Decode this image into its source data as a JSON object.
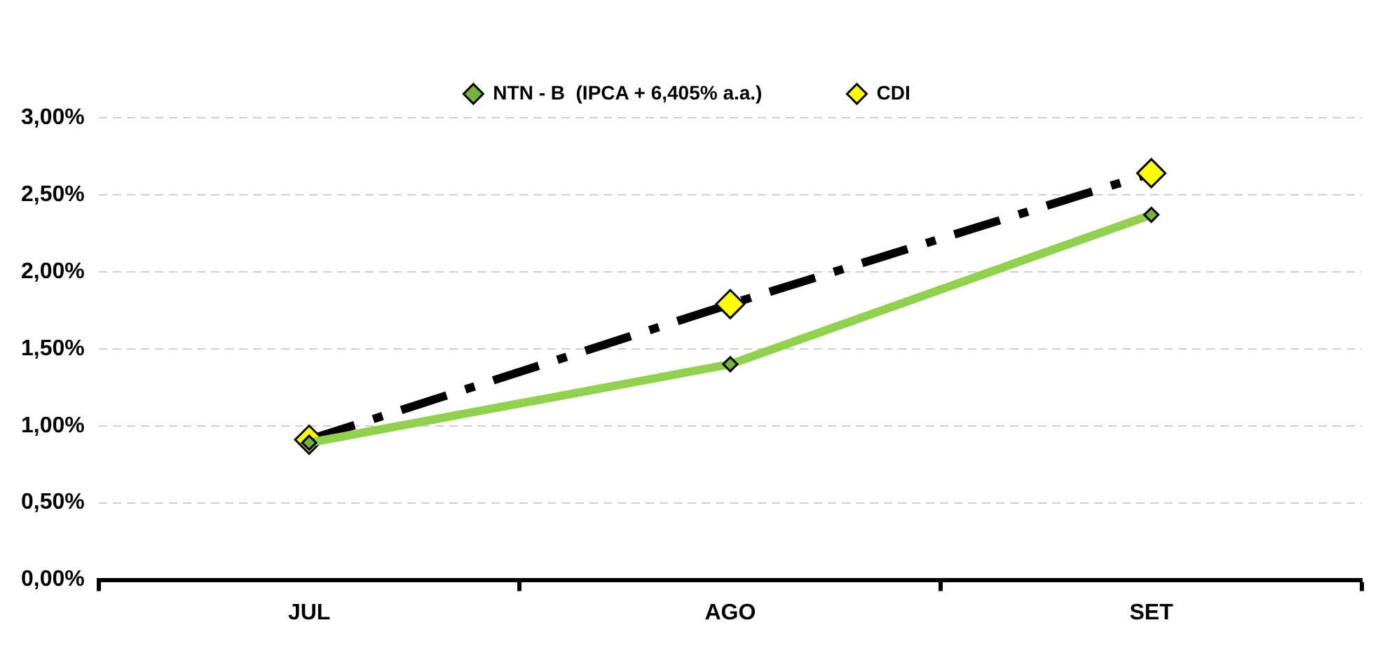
{
  "chart_data": {
    "type": "line",
    "categories": [
      "JUL",
      "AGO",
      "SET"
    ],
    "series": [
      {
        "name": "NTN - B  (IPCA + 6,405% a.a.)",
        "color": "#92d050",
        "values": [
          0.89,
          1.4,
          2.37
        ],
        "line_style": "solid",
        "marker": "diamond"
      },
      {
        "name": "CDI",
        "color": "#000000",
        "values": [
          0.91,
          1.79,
          2.64
        ],
        "line_style": "dashed",
        "marker": "diamond"
      }
    ],
    "ylim": [
      0,
      3
    ],
    "yticks": [
      {
        "value": 0,
        "label": "0,00%"
      },
      {
        "value": 0.5,
        "label": "0,50%"
      },
      {
        "value": 1,
        "label": "1,00%"
      },
      {
        "value": 1.5,
        "label": "1,50%"
      },
      {
        "value": 2,
        "label": "2,00%"
      },
      {
        "value": 2.5,
        "label": "2,50%"
      },
      {
        "value": 3,
        "label": "3,00%"
      }
    ],
    "grid": "y",
    "legend": "top"
  }
}
